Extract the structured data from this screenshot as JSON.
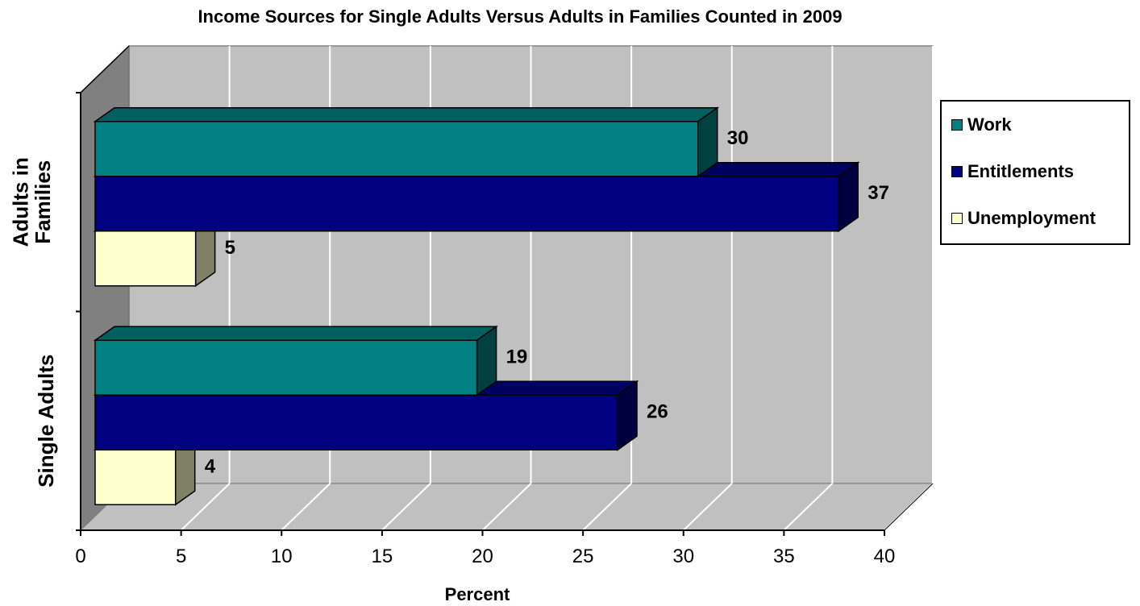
{
  "chart_data": {
    "type": "bar",
    "orientation": "horizontal",
    "style": "3d",
    "title": "Income Sources for Single Adults Versus Adults in Families Counted in 2009",
    "xlabel": "Percent",
    "ylabel": "",
    "xlim": [
      0,
      40
    ],
    "ticks": [
      "0",
      "5",
      "10",
      "15",
      "20",
      "25",
      "30",
      "35",
      "40"
    ],
    "categories": [
      "Adults in Families",
      "Single Adults"
    ],
    "series": [
      {
        "name": "Work",
        "values": [
          30,
          19
        ],
        "color": "#008080"
      },
      {
        "name": "Entitlements",
        "values": [
          37,
          26
        ],
        "color": "#000080"
      },
      {
        "name": "Unemployment",
        "values": [
          5,
          4
        ],
        "color": "#FFFFCC"
      }
    ],
    "data_labels": true,
    "grid": true,
    "legend_position": "right"
  },
  "colors": {
    "plot_back_wall": "#C0C0C0",
    "plot_side_wall": "#808080",
    "gridline": "#FFFFFF"
  }
}
